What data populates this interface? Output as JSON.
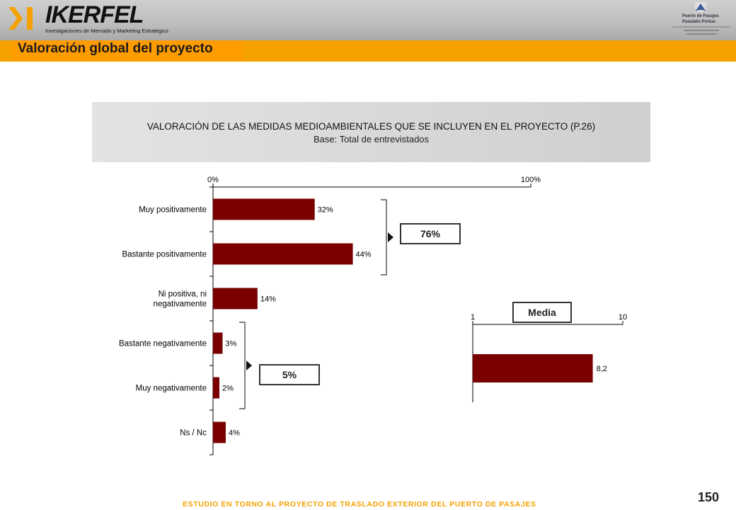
{
  "header": {
    "brand": "IKERFEL",
    "tagline": "Investigaciones de Mercado y Marketing Estratégico",
    "client_line1": "Puerto de Pasajes",
    "client_line2": "Pasaiako Portua"
  },
  "section_title": "Valoración global del proyecto",
  "chart_header": {
    "title": "VALORACIÓN DE LAS MEDIDAS MEDIOAMBIENTALES QUE SE INCLUYEN EN EL PROYECTO (P.26)",
    "subtitle": "Base: Total de entrevistados"
  },
  "summary": {
    "positive_total": "76%",
    "negative_total": "5%",
    "media_label": "Media"
  },
  "colors": {
    "bar": "#7a0000",
    "accent": "#f5a100"
  },
  "chart_data": [
    {
      "type": "bar",
      "orientation": "horizontal",
      "categories": [
        "Muy positivamente",
        "Bastante positivamente",
        "Ni positiva, ni negativamente",
        "Bastante negativamente",
        "Muy negativamente",
        "Ns / Nc"
      ],
      "category_lines": [
        [
          "Muy positivamente"
        ],
        [
          "Bastante positivamente"
        ],
        [
          "Ni positiva, ni",
          "negativamente"
        ],
        [
          "Bastante negativamente"
        ],
        [
          "Muy negativamente"
        ],
        [
          "Ns / Nc"
        ]
      ],
      "values": [
        32,
        44,
        14,
        3,
        2,
        4
      ],
      "value_labels": [
        "32%",
        "44%",
        "14%",
        "3%",
        "2%",
        "4%"
      ],
      "xlim": [
        0,
        100
      ],
      "tick_labels": [
        "0%",
        "100%"
      ],
      "grid": false
    },
    {
      "type": "bar",
      "orientation": "horizontal",
      "categories": [
        ""
      ],
      "values": [
        8.2
      ],
      "value_labels": [
        "8,2"
      ],
      "xlim": [
        1,
        10
      ],
      "tick_labels": [
        "1",
        "10"
      ],
      "grid": false
    }
  ],
  "footer": {
    "study": "ESTUDIO EN TORNO AL PROYECTO DE TRASLADO EXTERIOR DEL PUERTO DE PASAJES",
    "page_number": "150"
  }
}
